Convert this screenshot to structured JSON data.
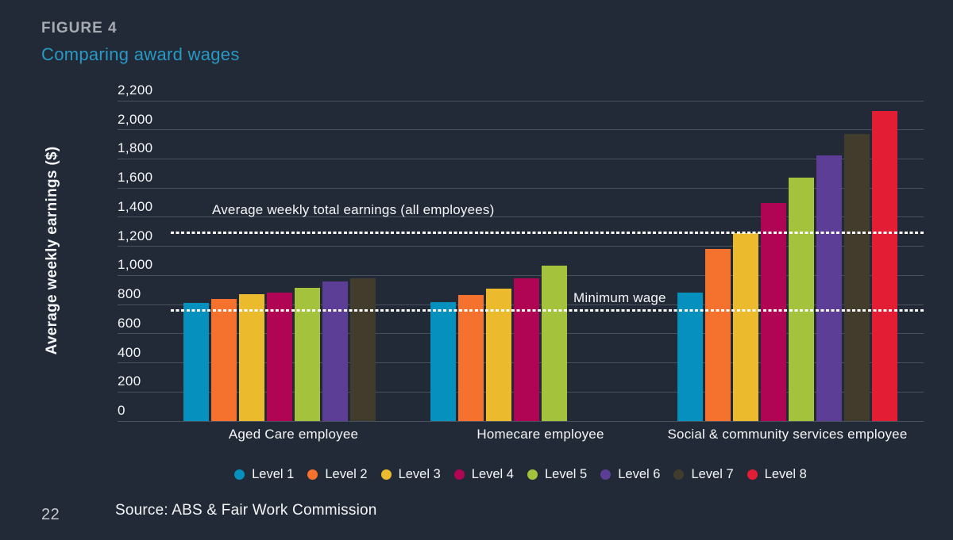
{
  "page": {
    "figure_label": "FIGURE 4",
    "title": "Comparing award wages",
    "page_number": "22",
    "source": "Source: ABS & Fair Work Commission"
  },
  "chart_data": {
    "type": "bar",
    "title": "Comparing award wages",
    "xlabel": "",
    "ylabel": "Average weekly earnings ($)",
    "ylim": [
      0,
      2200
    ],
    "ytick_step": 200,
    "grid": true,
    "legend_position": "bottom",
    "background_color": "#232A37",
    "gridline_color": "#49505E",
    "categories": [
      "Aged Care employee",
      "Homecare employee",
      "Social & community services employee"
    ],
    "series": [
      {
        "name": "Level 1",
        "color": "#0590BE",
        "values": [
          810,
          815,
          880
        ]
      },
      {
        "name": "Level 2",
        "color": "#F4722E",
        "values": [
          840,
          865,
          1180
        ]
      },
      {
        "name": "Level 3",
        "color": "#EBBA2D",
        "values": [
          870,
          910,
          1290
        ]
      },
      {
        "name": "Level 4",
        "color": "#B00554",
        "values": [
          880,
          980,
          1500
        ]
      },
      {
        "name": "Level 5",
        "color": "#A5C23C",
        "values": [
          915,
          1070,
          1670
        ]
      },
      {
        "name": "Level 6",
        "color": "#5D3E97",
        "values": [
          960,
          null,
          1825
        ]
      },
      {
        "name": "Level 7",
        "color": "#423C2C",
        "values": [
          980,
          null,
          1970
        ]
      },
      {
        "name": "Level 8",
        "color": "#E31D34",
        "values": [
          null,
          null,
          2130
        ]
      }
    ],
    "reference_lines": [
      {
        "label": "Average weekly total earnings (all employees)",
        "value": 1295,
        "color": "#FFFFFF",
        "style": "dotted"
      },
      {
        "label": "Minimum wage",
        "value": 758,
        "color": "#FFFFFF",
        "style": "dotted"
      }
    ]
  }
}
